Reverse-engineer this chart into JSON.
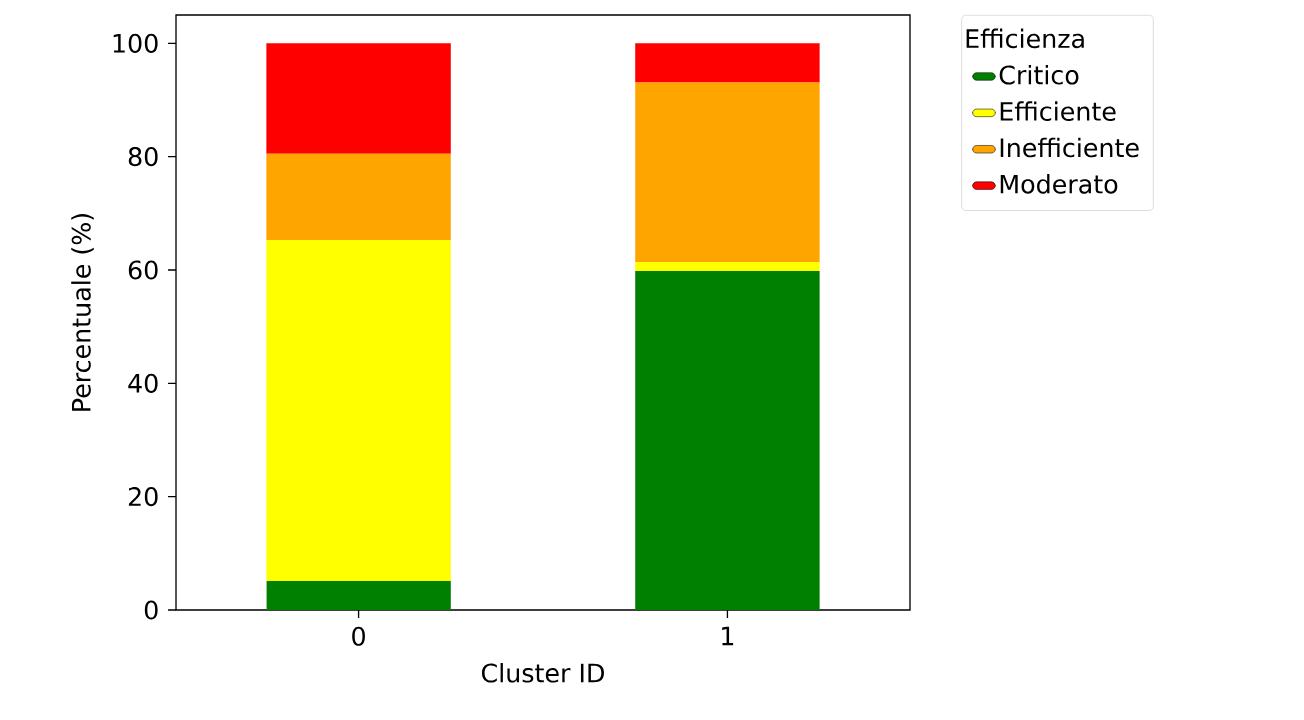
{
  "chart_data": {
    "type": "bar",
    "stacked": true,
    "xlabel": "Cluster ID",
    "ylabel": "Percentuale (%)",
    "legend_title": "Efficienza",
    "legend": "top right",
    "categories": [
      "0",
      "1"
    ],
    "series": [
      {
        "name": "Critico",
        "color": "#008000",
        "values": [
          5.1,
          59.8
        ]
      },
      {
        "name": "Efficiente",
        "color": "#ffff00",
        "values": [
          60.2,
          1.6
        ]
      },
      {
        "name": "Inefficiente",
        "color": "#ffa500",
        "values": [
          15.2,
          31.7
        ]
      },
      {
        "name": "Moderato",
        "color": "#ff0000",
        "values": [
          19.5,
          6.9
        ]
      }
    ],
    "ylim": [
      0,
      105
    ],
    "yticks": [
      0,
      20,
      40,
      60,
      80,
      100
    ]
  }
}
